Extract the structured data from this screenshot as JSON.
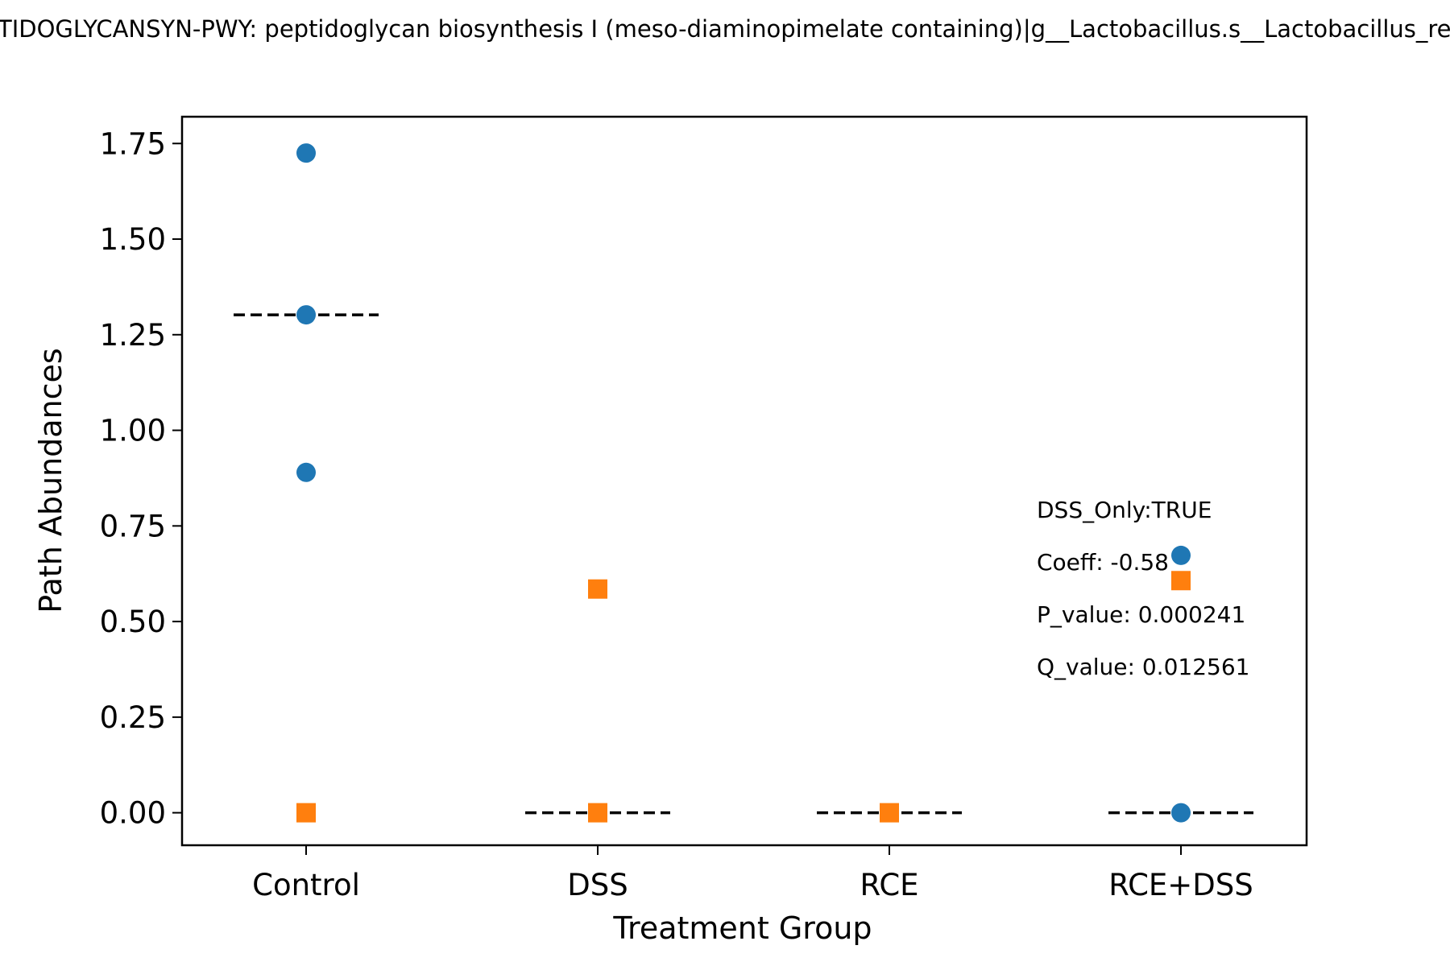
{
  "chart_data": {
    "type": "scatter",
    "title": "TIDOGLYCANSYN-PWY: peptidoglycan biosynthesis I (meso-diaminopimelate containing)|g__Lactobacillus.s__Lactobacillus_re",
    "xlabel": "Treatment Group",
    "ylabel": "Path Abundances",
    "categories": [
      "Control",
      "DSS",
      "RCE",
      "RCE+DSS"
    ],
    "ylim": [
      -0.085,
      1.82
    ],
    "yticks": [
      0.0,
      0.25,
      0.5,
      0.75,
      1.0,
      1.25,
      1.5,
      1.75
    ],
    "ytick_labels": [
      "0.00",
      "0.25",
      "0.50",
      "0.75",
      "1.00",
      "1.25",
      "1.50",
      "1.75"
    ],
    "grid": false,
    "series": [
      {
        "marker": "circle",
        "color": "#1f77b4",
        "points": [
          {
            "x": "Control",
            "y": 1.725
          },
          {
            "x": "Control",
            "y": 1.302
          },
          {
            "x": "Control",
            "y": 0.89
          },
          {
            "x": "RCE+DSS",
            "y": 0.673
          },
          {
            "x": "RCE+DSS",
            "y": 0.0
          }
        ]
      },
      {
        "marker": "square",
        "color": "#ff7f0e",
        "points": [
          {
            "x": "Control",
            "y": 0.0
          },
          {
            "x": "DSS",
            "y": 0.585
          },
          {
            "x": "DSS",
            "y": 0.0
          },
          {
            "x": "RCE",
            "y": 0.0
          },
          {
            "x": "RCE+DSS",
            "y": 0.607
          }
        ]
      }
    ],
    "medians": [
      {
        "x": "Control",
        "y": 1.302
      },
      {
        "x": "DSS",
        "y": 0.0
      },
      {
        "x": "RCE",
        "y": 0.0
      },
      {
        "x": "RCE+DSS",
        "y": 0.0
      }
    ],
    "annotations": [
      "DSS_Only:TRUE",
      "Coeff: -0.58",
      "P_value: 0.000241",
      "Q_value: 0.012561"
    ]
  }
}
